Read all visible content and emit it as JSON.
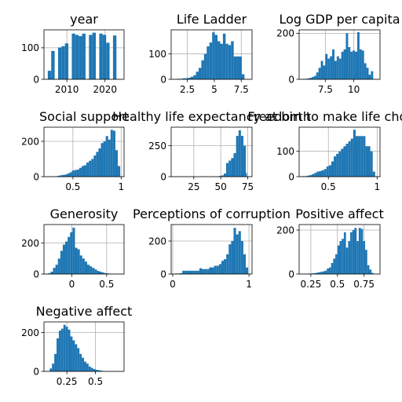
{
  "chart_data": [
    {
      "type": "bar",
      "title": "year",
      "xlim": [
        2004,
        2025
      ],
      "ylim": [
        0,
        157
      ],
      "xticks": [
        2010,
        2020
      ],
      "yticks": [
        0,
        100
      ],
      "bin_edges": [
        2005.0,
        2005.9,
        2006.8,
        2007.7,
        2008.6,
        2009.5,
        2010.4,
        2011.3,
        2012.2,
        2013.1,
        2014.0,
        2014.9,
        2015.8,
        2016.7,
        2017.6,
        2018.5,
        2019.4,
        2020.3,
        2021.2,
        2022.1,
        2023.0
      ],
      "counts": [
        27,
        90,
        0,
        101,
        105,
        114,
        0,
        145,
        141,
        137,
        145,
        0,
        141,
        148,
        0,
        145,
        141,
        116,
        0,
        139
      ]
    },
    {
      "type": "bar",
      "title": "Life Ladder",
      "xlim": [
        1.0,
        8.5
      ],
      "ylim": [
        0,
        195
      ],
      "xticks": [
        2.5,
        5.0,
        7.5
      ],
      "yticks": [
        0,
        100
      ],
      "bin_edges": [
        1.3,
        1.55,
        1.8,
        2.05,
        2.3,
        2.55,
        2.8,
        3.05,
        3.3,
        3.55,
        3.8,
        4.05,
        4.3,
        4.55,
        4.8,
        5.05,
        5.3,
        5.55,
        5.8,
        6.05,
        6.3,
        6.55,
        6.8,
        7.05,
        7.3,
        7.55,
        7.8
      ],
      "counts": [
        1,
        2,
        2,
        4,
        4,
        6,
        10,
        16,
        30,
        45,
        75,
        100,
        130,
        145,
        185,
        175,
        150,
        140,
        180,
        140,
        135,
        150,
        90,
        90,
        90,
        20
      ]
    },
    {
      "type": "bar",
      "title": "Log GDP per capita",
      "xlim": [
        5.2,
        12.3
      ],
      "ylim": [
        0,
        215
      ],
      "xticks": [
        7.5,
        10.0
      ],
      "yticks": [
        0,
        200
      ],
      "bin_edges": [
        5.5,
        5.7,
        5.9,
        6.1,
        6.3,
        6.5,
        6.7,
        6.9,
        7.1,
        7.3,
        7.5,
        7.7,
        7.9,
        8.1,
        8.3,
        8.5,
        8.7,
        8.9,
        9.1,
        9.3,
        9.5,
        9.7,
        9.9,
        10.1,
        10.3,
        10.5,
        10.7,
        10.9,
        11.1,
        11.3,
        11.5,
        11.7
      ],
      "counts": [
        2,
        2,
        4,
        6,
        10,
        15,
        30,
        50,
        80,
        60,
        110,
        90,
        100,
        130,
        80,
        100,
        90,
        120,
        130,
        200,
        140,
        120,
        125,
        120,
        205,
        130,
        125,
        70,
        50,
        20,
        35
      ]
    },
    {
      "type": "bar",
      "title": "Social support",
      "xlim": [
        0.2,
        1.03
      ],
      "ylim": [
        0,
        280
      ],
      "xticks": [
        0.5,
        1.0
      ],
      "yticks": [
        0,
        200
      ],
      "bin_edges": [
        0.29,
        0.315,
        0.34,
        0.365,
        0.39,
        0.415,
        0.44,
        0.465,
        0.49,
        0.515,
        0.54,
        0.565,
        0.59,
        0.615,
        0.64,
        0.665,
        0.69,
        0.715,
        0.74,
        0.765,
        0.79,
        0.815,
        0.84,
        0.865,
        0.89,
        0.915,
        0.94,
        0.965,
        0.99
      ],
      "counts": [
        2,
        2,
        5,
        8,
        10,
        12,
        18,
        25,
        35,
        38,
        40,
        50,
        60,
        65,
        80,
        90,
        100,
        120,
        140,
        160,
        190,
        200,
        230,
        210,
        265,
        260,
        150,
        60
      ]
    },
    {
      "type": "bar",
      "title": "Healthy life expectancy at birth",
      "xlim": [
        4,
        79
      ],
      "ylim": [
        0,
        400
      ],
      "xticks": [
        25,
        50,
        75
      ],
      "yticks": [
        0,
        250
      ],
      "bin_edges": [
        6.7,
        9.0,
        11.3,
        13.6,
        15.9,
        18.2,
        20.5,
        22.8,
        25.1,
        27.4,
        29.7,
        32.0,
        34.3,
        36.6,
        38.9,
        41.2,
        43.5,
        45.8,
        48.1,
        50.4,
        52.7,
        55.0,
        57.3,
        59.6,
        61.9,
        64.2,
        66.5,
        68.7,
        71.0,
        73.3,
        74.3
      ],
      "counts": [
        1,
        0,
        0,
        0,
        0,
        0,
        0,
        0,
        0,
        0,
        0,
        0,
        0,
        0,
        0,
        0,
        0,
        2,
        5,
        10,
        25,
        110,
        130,
        150,
        190,
        330,
        375,
        330,
        250,
        30
      ]
    },
    {
      "type": "bar",
      "title": "Freedom to make life choices",
      "xlim": [
        0.2,
        1.03
      ],
      "ylim": [
        0,
        195
      ],
      "xticks": [
        0.5,
        1.0
      ],
      "yticks": [
        0,
        100
      ],
      "bin_edges": [
        0.23,
        0.255,
        0.28,
        0.305,
        0.33,
        0.355,
        0.38,
        0.405,
        0.43,
        0.455,
        0.48,
        0.505,
        0.53,
        0.555,
        0.58,
        0.605,
        0.63,
        0.655,
        0.68,
        0.705,
        0.73,
        0.755,
        0.78,
        0.805,
        0.83,
        0.855,
        0.88,
        0.905,
        0.93,
        0.955,
        0.98
      ],
      "counts": [
        2,
        2,
        4,
        6,
        10,
        15,
        20,
        22,
        25,
        30,
        40,
        45,
        60,
        80,
        90,
        100,
        110,
        120,
        130,
        140,
        150,
        185,
        160,
        160,
        160,
        160,
        120,
        120,
        100,
        20
      ]
    },
    {
      "type": "bar",
      "title": "Generosity",
      "xlim": [
        -0.4,
        0.75
      ],
      "ylim": [
        0,
        320
      ],
      "xticks": [
        0.0,
        0.5
      ],
      "yticks": [
        0,
        200
      ],
      "bin_edges": [
        -0.34,
        -0.305,
        -0.27,
        -0.235,
        -0.2,
        -0.165,
        -0.13,
        -0.095,
        -0.06,
        -0.025,
        0.01,
        0.045,
        0.08,
        0.115,
        0.15,
        0.185,
        0.22,
        0.255,
        0.29,
        0.325,
        0.36,
        0.395,
        0.43,
        0.465,
        0.5,
        0.535,
        0.57,
        0.605,
        0.64,
        0.675,
        0.71
      ],
      "counts": [
        5,
        15,
        40,
        60,
        100,
        150,
        190,
        210,
        240,
        270,
        300,
        170,
        160,
        120,
        100,
        80,
        60,
        50,
        40,
        30,
        20,
        15,
        10,
        6,
        4,
        2,
        2,
        1,
        0,
        1
      ]
    },
    {
      "type": "bar",
      "title": "Perceptions of corruption",
      "xlim": [
        -0.02,
        1.04
      ],
      "ylim": [
        0,
        300
      ],
      "xticks": [
        0,
        1
      ],
      "yticks": [
        0,
        200
      ],
      "bin_edges": [
        0.03,
        0.062,
        0.094,
        0.126,
        0.158,
        0.19,
        0.222,
        0.254,
        0.286,
        0.318,
        0.35,
        0.382,
        0.414,
        0.446,
        0.478,
        0.51,
        0.542,
        0.574,
        0.606,
        0.638,
        0.67,
        0.702,
        0.734,
        0.766,
        0.798,
        0.83,
        0.862,
        0.894,
        0.926,
        0.958,
        0.99
      ],
      "counts": [
        3,
        3,
        5,
        20,
        20,
        20,
        20,
        20,
        20,
        20,
        35,
        30,
        30,
        30,
        40,
        40,
        50,
        50,
        60,
        80,
        90,
        120,
        180,
        200,
        280,
        240,
        260,
        200,
        120,
        40
      ]
    },
    {
      "type": "bar",
      "title": "Positive affect",
      "xlim": [
        0.14,
        0.9
      ],
      "ylim": [
        0,
        225
      ],
      "xticks": [
        0.25,
        0.5,
        0.75
      ],
      "yticks": [
        0,
        200
      ],
      "bin_edges": [
        0.18,
        0.2,
        0.22,
        0.24,
        0.26,
        0.28,
        0.3,
        0.32,
        0.34,
        0.36,
        0.38,
        0.4,
        0.42,
        0.44,
        0.46,
        0.48,
        0.5,
        0.52,
        0.54,
        0.56,
        0.58,
        0.6,
        0.62,
        0.64,
        0.66,
        0.68,
        0.7,
        0.72,
        0.74,
        0.76,
        0.78,
        0.8,
        0.82,
        0.84
      ],
      "counts": [
        1,
        1,
        2,
        2,
        3,
        4,
        6,
        8,
        10,
        12,
        15,
        25,
        30,
        50,
        70,
        90,
        130,
        150,
        160,
        190,
        120,
        150,
        190,
        200,
        210,
        150,
        210,
        205,
        150,
        110,
        40,
        20,
        5
      ]
    },
    {
      "type": "bar",
      "title": "Negative affect",
      "xlim": [
        0.05,
        0.75
      ],
      "ylim": [
        0,
        255
      ],
      "xticks": [
        0.25,
        0.5
      ],
      "yticks": [
        0,
        200
      ],
      "bin_edges": [
        0.08,
        0.1,
        0.12,
        0.14,
        0.16,
        0.18,
        0.2,
        0.22,
        0.24,
        0.26,
        0.28,
        0.3,
        0.32,
        0.34,
        0.36,
        0.38,
        0.4,
        0.42,
        0.44,
        0.46,
        0.48,
        0.5,
        0.52,
        0.54,
        0.56,
        0.58,
        0.6,
        0.62,
        0.64,
        0.66,
        0.68,
        0.7
      ],
      "counts": [
        2,
        15,
        40,
        90,
        170,
        210,
        220,
        240,
        230,
        215,
        180,
        160,
        140,
        120,
        90,
        70,
        50,
        40,
        25,
        18,
        12,
        8,
        6,
        4,
        2,
        2,
        1,
        1,
        0,
        0,
        1
      ]
    }
  ]
}
